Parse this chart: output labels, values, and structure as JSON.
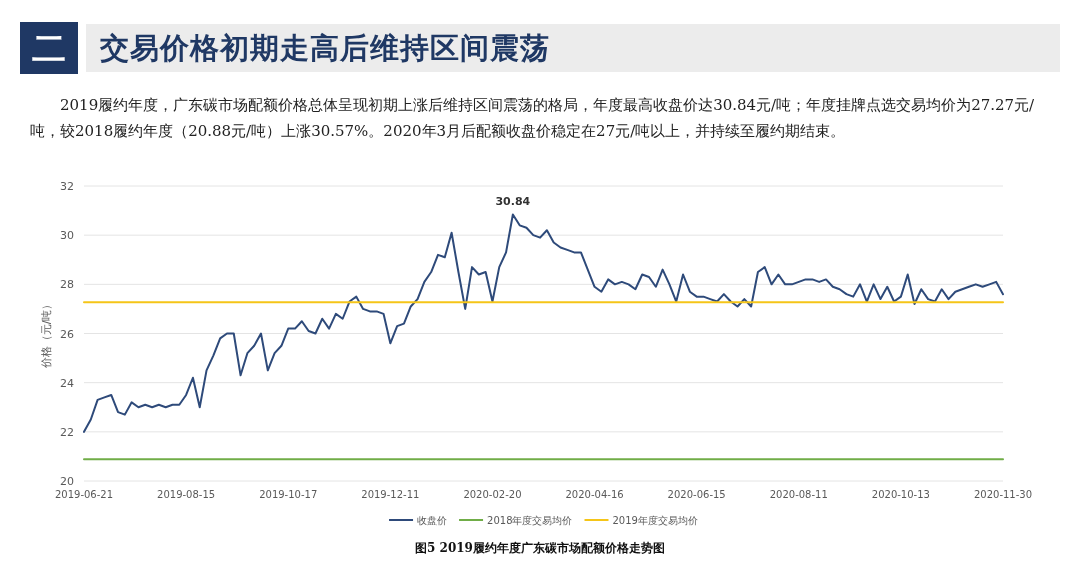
{
  "chart_data": {
    "type": "line",
    "title": "交易价格初期走高后维持区间震荡",
    "subtitle": "2019履约年度，广东碳市场配额价格总体呈现初期上涨后维持区间震荡的格局，年度最高收盘价达30.84元/吨；年度挂牌点选交易均价为27.27元/吨，较2018履约年度（20.88元/吨）上涨30.57%。2020年3月后配额收盘价稳定在27元/吨以上，并持续至履约期结束。",
    "ylabel": "价格（元/吨）",
    "annotations": [
      "二",
      "图5  2019履约年度广东碳市场配额价格走势图",
      {
        "text": "30.84",
        "y": 30.84
      }
    ],
    "categories": [
      "2019-06-21",
      null,
      null,
      null,
      null,
      null,
      null,
      null,
      null,
      null,
      null,
      null,
      null,
      null,
      null,
      "2019-08-15",
      null,
      null,
      null,
      null,
      null,
      null,
      null,
      null,
      null,
      null,
      null,
      null,
      null,
      null,
      "2019-10-17",
      null,
      null,
      null,
      null,
      null,
      null,
      null,
      null,
      null,
      null,
      null,
      null,
      null,
      null,
      "2019-12-11",
      null,
      null,
      null,
      null,
      null,
      null,
      null,
      null,
      null,
      null,
      null,
      null,
      null,
      null,
      "2020-02-20",
      null,
      null,
      null,
      null,
      null,
      null,
      null,
      null,
      null,
      null,
      null,
      null,
      null,
      null,
      "2020-04-16",
      null,
      null,
      null,
      null,
      null,
      null,
      null,
      null,
      null,
      null,
      null,
      null,
      null,
      null,
      "2020-06-15",
      null,
      null,
      null,
      null,
      null,
      null,
      null,
      null,
      null,
      null,
      null,
      null,
      null,
      null,
      "2020-08-11",
      null,
      null,
      null,
      null,
      null,
      null,
      null,
      null,
      null,
      null,
      null,
      null,
      null,
      null,
      "2020-10-13",
      null,
      null,
      null,
      null,
      null,
      null,
      null,
      null,
      null,
      null,
      null,
      null,
      null,
      null,
      "2020-11-30"
    ],
    "series": [
      {
        "name": "收盘价",
        "color": "#2e4a7a",
        "values": [
          22.0,
          22.5,
          23.3,
          23.4,
          23.5,
          22.8,
          22.7,
          23.2,
          23.0,
          23.1,
          23.0,
          23.1,
          23.0,
          23.1,
          23.1,
          23.5,
          24.2,
          23.0,
          24.5,
          25.1,
          25.8,
          26.0,
          26.0,
          24.3,
          25.2,
          25.5,
          26.0,
          24.5,
          25.2,
          25.5,
          26.2,
          26.2,
          26.5,
          26.1,
          26.0,
          26.6,
          26.2,
          26.8,
          26.6,
          27.3,
          27.5,
          27.0,
          26.9,
          26.9,
          26.8,
          25.6,
          26.3,
          26.4,
          27.1,
          27.4,
          28.1,
          28.5,
          29.2,
          29.1,
          30.1,
          28.5,
          27.0,
          28.7,
          28.4,
          28.5,
          27.3,
          28.7,
          29.3,
          30.84,
          30.4,
          30.3,
          30.0,
          29.9,
          30.2,
          29.7,
          29.5,
          29.4,
          29.3,
          29.3,
          28.6,
          27.9,
          27.7,
          28.2,
          28.0,
          28.1,
          28.0,
          27.8,
          28.4,
          28.3,
          27.9,
          28.6,
          28.0,
          27.3,
          28.4,
          27.7,
          27.5,
          27.5,
          27.4,
          27.3,
          27.6,
          27.3,
          27.1,
          27.4,
          27.1,
          28.5,
          28.7,
          28.0,
          28.4,
          28.0,
          28.0,
          28.1,
          28.2,
          28.2,
          28.1,
          28.2,
          27.9,
          27.8,
          27.6,
          27.5,
          28.0,
          27.3,
          28.0,
          27.4,
          27.9,
          27.3,
          27.5,
          28.4,
          27.2,
          27.8,
          27.4,
          27.3,
          27.8,
          27.4,
          27.7,
          27.8,
          27.9,
          28.0,
          27.9,
          28.0,
          28.1,
          27.6
        ]
      },
      {
        "name": "2018年度交易均价",
        "color": "#70ad47",
        "values": [
          20.88,
          20.88,
          20.88,
          20.88,
          20.88,
          20.88,
          20.88,
          20.88,
          20.88,
          20.88,
          20.88,
          20.88,
          20.88,
          20.88,
          20.88,
          20.88,
          20.88,
          20.88,
          20.88,
          20.88,
          20.88,
          20.88,
          20.88,
          20.88,
          20.88,
          20.88,
          20.88,
          20.88,
          20.88,
          20.88,
          20.88,
          20.88,
          20.88,
          20.88,
          20.88,
          20.88,
          20.88,
          20.88,
          20.88,
          20.88,
          20.88,
          20.88,
          20.88,
          20.88,
          20.88,
          20.88,
          20.88,
          20.88,
          20.88,
          20.88,
          20.88,
          20.88,
          20.88,
          20.88,
          20.88,
          20.88,
          20.88,
          20.88,
          20.88,
          20.88,
          20.88,
          20.88,
          20.88,
          20.88,
          20.88,
          20.88,
          20.88,
          20.88,
          20.88,
          20.88,
          20.88,
          20.88,
          20.88,
          20.88,
          20.88,
          20.88,
          20.88,
          20.88,
          20.88,
          20.88,
          20.88,
          20.88,
          20.88,
          20.88,
          20.88,
          20.88,
          20.88,
          20.88,
          20.88,
          20.88,
          20.88,
          20.88,
          20.88,
          20.88,
          20.88,
          20.88,
          20.88,
          20.88,
          20.88,
          20.88,
          20.88,
          20.88,
          20.88,
          20.88,
          20.88,
          20.88,
          20.88,
          20.88,
          20.88,
          20.88,
          20.88,
          20.88,
          20.88,
          20.88,
          20.88,
          20.88,
          20.88,
          20.88,
          20.88,
          20.88,
          20.88,
          20.88,
          20.88,
          20.88,
          20.88,
          20.88,
          20.88,
          20.88,
          20.88,
          20.88,
          20.88,
          20.88,
          20.88,
          20.88,
          20.88,
          20.88
        ]
      },
      {
        "name": "2019年度交易均价",
        "color": "#f5c518",
        "values": [
          27.27,
          27.27,
          27.27,
          27.27,
          27.27,
          27.27,
          27.27,
          27.27,
          27.27,
          27.27,
          27.27,
          27.27,
          27.27,
          27.27,
          27.27,
          27.27,
          27.27,
          27.27,
          27.27,
          27.27,
          27.27,
          27.27,
          27.27,
          27.27,
          27.27,
          27.27,
          27.27,
          27.27,
          27.27,
          27.27,
          27.27,
          27.27,
          27.27,
          27.27,
          27.27,
          27.27,
          27.27,
          27.27,
          27.27,
          27.27,
          27.27,
          27.27,
          27.27,
          27.27,
          27.27,
          27.27,
          27.27,
          27.27,
          27.27,
          27.27,
          27.27,
          27.27,
          27.27,
          27.27,
          27.27,
          27.27,
          27.27,
          27.27,
          27.27,
          27.27,
          27.27,
          27.27,
          27.27,
          27.27,
          27.27,
          27.27,
          27.27,
          27.27,
          27.27,
          27.27,
          27.27,
          27.27,
          27.27,
          27.27,
          27.27,
          27.27,
          27.27,
          27.27,
          27.27,
          27.27,
          27.27,
          27.27,
          27.27,
          27.27,
          27.27,
          27.27,
          27.27,
          27.27,
          27.27,
          27.27,
          27.27,
          27.27,
          27.27,
          27.27,
          27.27,
          27.27,
          27.27,
          27.27,
          27.27,
          27.27,
          27.27,
          27.27,
          27.27,
          27.27,
          27.27,
          27.27,
          27.27,
          27.27,
          27.27,
          27.27,
          27.27,
          27.27,
          27.27,
          27.27,
          27.27,
          27.27,
          27.27,
          27.27,
          27.27,
          27.27,
          27.27,
          27.27,
          27.27,
          27.27,
          27.27,
          27.27,
          27.27,
          27.27,
          27.27,
          27.27,
          27.27,
          27.27,
          27.27,
          27.27,
          27.27,
          27.27
        ]
      }
    ],
    "ylim": [
      20,
      32
    ],
    "yticks": [
      20,
      22,
      24,
      26,
      28,
      30,
      32
    ],
    "grid": "y",
    "legend": "bottom",
    "marker": "none",
    "line_style": "solid"
  }
}
